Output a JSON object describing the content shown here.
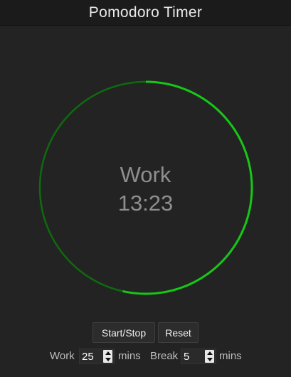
{
  "app": {
    "title": "Pomodoro Timer"
  },
  "timer": {
    "mode": "Work",
    "time": "13:23",
    "progress_remaining": 0.535,
    "ring_color_bright": "#16c716",
    "ring_color_dark": "#0f6a0f"
  },
  "controls": {
    "start_stop_label": "Start/Stop",
    "reset_label": "Reset"
  },
  "settings": {
    "work_label": "Work",
    "work_value": "25",
    "work_unit": "mins",
    "break_label": "Break",
    "break_value": "5",
    "break_unit": "mins"
  }
}
